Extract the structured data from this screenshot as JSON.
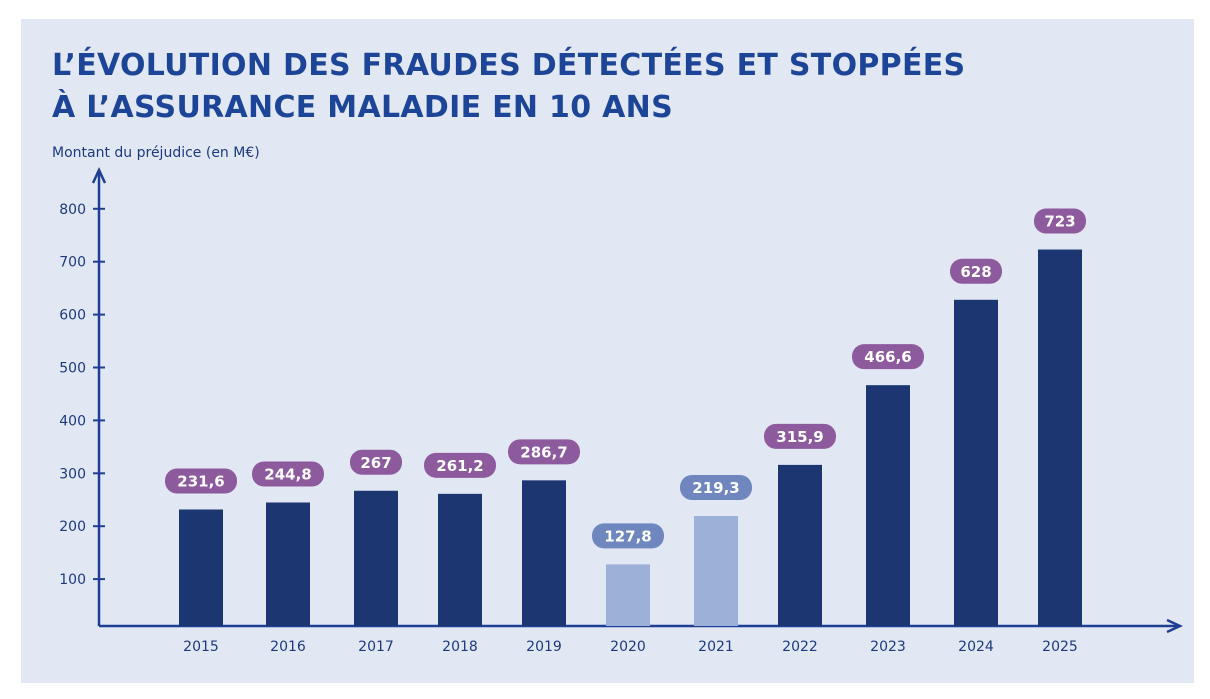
{
  "colors": {
    "bar": "#1b3670",
    "bar_light": "#9cb1d8",
    "pill": "#8e5a9e",
    "pill_light": "#6f86bf",
    "axis": "#1f3f94",
    "background": "#e2e7f4"
  },
  "chart_data": {
    "type": "bar",
    "title_line1": "L’ÉVOLUTION DES FRAUDES DÉTECTÉES ET STOPPÉES",
    "title_line2": "À L’ASSURANCE MALADIE EN 10 ANS",
    "ylabel": "Montant du préjudice (en M€)",
    "xlabel": "",
    "ylim": [
      0,
      800
    ],
    "yticks": [
      100,
      200,
      300,
      400,
      500,
      600,
      700,
      800
    ],
    "categories": [
      "2015",
      "2016",
      "2017",
      "2018",
      "2019",
      "2020",
      "2021",
      "2022",
      "2023",
      "2024",
      "2025"
    ],
    "values": [
      231.6,
      244.8,
      267,
      261.2,
      286.7,
      127.8,
      219.3,
      315.9,
      466.6,
      628,
      723
    ],
    "value_labels": [
      "231,6",
      "244,8",
      "267",
      "261,2",
      "286,7",
      "127,8",
      "219,3",
      "315,9",
      "466,6",
      "628",
      "723"
    ],
    "highlight_light": [
      "2020",
      "2021"
    ]
  }
}
